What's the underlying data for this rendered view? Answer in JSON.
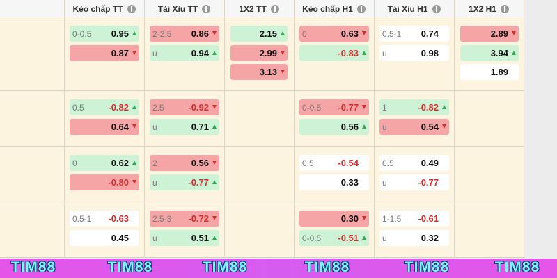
{
  "header": {
    "columns": [
      "Kèo chấp TT",
      "Tài Xỉu TT",
      "1X2 TT",
      "Kèo chấp H1",
      "Tài Xỉu H1",
      "1X2 H1"
    ]
  },
  "rows": [
    {
      "cells": [
        [
          {
            "line": "0-0.5",
            "odds": "0.95",
            "trend": "up"
          },
          {
            "odds": "0.87",
            "trend": "down"
          }
        ],
        [
          {
            "line": "2-2.5",
            "odds": "0.86",
            "trend": "down"
          },
          {
            "line": "u",
            "odds": "0.94",
            "trend": "up"
          }
        ],
        [
          {
            "odds": "2.15",
            "trend": "up"
          },
          {
            "odds": "2.99",
            "trend": "down"
          },
          {
            "odds": "3.13",
            "trend": "down"
          }
        ],
        [
          {
            "line": "0",
            "odds": "0.63",
            "trend": "down"
          },
          {
            "odds": "-0.83",
            "trend": "up"
          }
        ],
        [
          {
            "line": "0.5-1",
            "odds": "0.74"
          },
          {
            "line": "u",
            "odds": "0.98"
          }
        ],
        [
          {
            "odds": "2.89",
            "trend": "down"
          },
          {
            "odds": "3.94",
            "trend": "up"
          },
          {
            "odds": "1.89"
          }
        ]
      ]
    },
    {
      "cells": [
        [
          {
            "line": "0.5",
            "odds": "-0.82",
            "trend": "up"
          },
          {
            "odds": "0.64",
            "trend": "down"
          }
        ],
        [
          {
            "line": "2.5",
            "odds": "-0.92",
            "trend": "down"
          },
          {
            "line": "u",
            "odds": "0.71",
            "trend": "up"
          }
        ],
        [],
        [
          {
            "line": "0-0.5",
            "odds": "-0.77",
            "trend": "down"
          },
          {
            "odds": "0.56",
            "trend": "up"
          }
        ],
        [
          {
            "line": "1",
            "odds": "-0.82",
            "trend": "up"
          },
          {
            "line": "u",
            "odds": "0.54",
            "trend": "down"
          }
        ],
        []
      ]
    },
    {
      "cells": [
        [
          {
            "line": "0",
            "odds": "0.62",
            "trend": "up"
          },
          {
            "odds": "-0.80",
            "trend": "down"
          }
        ],
        [
          {
            "line": "2",
            "odds": "0.56",
            "trend": "down"
          },
          {
            "line": "u",
            "odds": "-0.77",
            "trend": "up"
          }
        ],
        [],
        [
          {
            "line": "0.5",
            "odds": "-0.54"
          },
          {
            "odds": "0.33"
          }
        ],
        [
          {
            "line": "0.5",
            "odds": "0.49"
          },
          {
            "line": "u",
            "odds": "-0.77"
          }
        ],
        []
      ]
    },
    {
      "cells": [
        [
          {
            "line": "0.5-1",
            "odds": "-0.63"
          },
          {
            "odds": "0.45"
          }
        ],
        [
          {
            "line": "2.5-3",
            "odds": "-0.72",
            "trend": "down"
          },
          {
            "line": "u",
            "odds": "0.51",
            "trend": "up"
          }
        ],
        [],
        [
          {
            "odds": "0.30",
            "trend": "down"
          },
          {
            "line": "0-0.5",
            "odds": "-0.51",
            "trend": "up"
          }
        ],
        [
          {
            "line": "1-1.5",
            "odds": "-0.61"
          },
          {
            "line": "u",
            "odds": "0.32"
          }
        ],
        []
      ]
    }
  ],
  "footer": {
    "watermarks": [
      "TIM88",
      "TIM88",
      "TIM88",
      "TIM88",
      "TIM88",
      "TIM88"
    ]
  }
}
